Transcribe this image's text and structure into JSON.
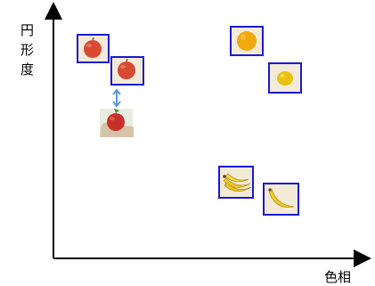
{
  "axes": {
    "y_label": [
      "円",
      "形",
      "度"
    ],
    "x_label": "色相"
  },
  "colors": {
    "axis": "#000000",
    "box_border": "#1a1ad0",
    "arrow": "#5b9bd5",
    "apple": "#d94a34",
    "orange": "#f2a80f",
    "lemon": "#e8c20d",
    "banana": "#f0cc2a"
  },
  "items": [
    {
      "name": "apple-1",
      "icon": "apple-icon",
      "boxed": true
    },
    {
      "name": "apple-2",
      "icon": "apple-icon",
      "boxed": true
    },
    {
      "name": "apple-query",
      "icon": "apple-in-hand-icon",
      "boxed": false
    },
    {
      "name": "orange",
      "icon": "orange-icon",
      "boxed": true
    },
    {
      "name": "lemon",
      "icon": "lemon-icon",
      "boxed": true
    },
    {
      "name": "banana-1",
      "icon": "banana-bunch-icon",
      "boxed": true
    },
    {
      "name": "banana-2",
      "icon": "banana-icon",
      "boxed": true
    }
  ]
}
